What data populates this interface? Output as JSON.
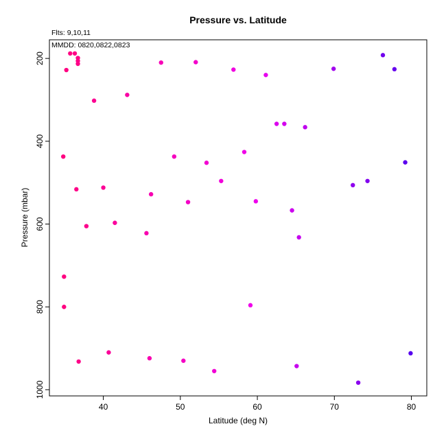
{
  "chart_data": {
    "type": "scatter",
    "title": "Pressure vs. Latitude",
    "xlabel": "Latitude (deg N)",
    "ylabel": "Pressure (mbar)",
    "xlim": [
      33,
      82
    ],
    "ylim": [
      1015,
      155
    ],
    "y_reversed": true,
    "grid": false,
    "legend": "none",
    "xticks": [
      40,
      50,
      60,
      70,
      80
    ],
    "yticks": [
      200,
      400,
      600,
      800,
      1000
    ],
    "annotations": [
      "Flts: 9,10,11",
      "MMDD: 0820,0822,0823"
    ],
    "color_scale": "latitude: deep pink (#ff0080) at 35 to magenta (#ee00ee) around 60 to blue-violet (#5500ee) at 80",
    "points": [
      {
        "x": 35.7,
        "y": 188
      },
      {
        "x": 36.3,
        "y": 188
      },
      {
        "x": 36.7,
        "y": 199
      },
      {
        "x": 36.7,
        "y": 206
      },
      {
        "x": 36.7,
        "y": 213
      },
      {
        "x": 35.2,
        "y": 228
      },
      {
        "x": 47.5,
        "y": 210
      },
      {
        "x": 52.0,
        "y": 209
      },
      {
        "x": 56.9,
        "y": 227
      },
      {
        "x": 61.1,
        "y": 240
      },
      {
        "x": 43.1,
        "y": 288
      },
      {
        "x": 38.8,
        "y": 302
      },
      {
        "x": 62.5,
        "y": 358
      },
      {
        "x": 63.5,
        "y": 358
      },
      {
        "x": 66.2,
        "y": 366
      },
      {
        "x": 69.9,
        "y": 225
      },
      {
        "x": 76.3,
        "y": 192
      },
      {
        "x": 77.8,
        "y": 226
      },
      {
        "x": 34.8,
        "y": 437
      },
      {
        "x": 49.2,
        "y": 437
      },
      {
        "x": 53.4,
        "y": 452
      },
      {
        "x": 58.3,
        "y": 426
      },
      {
        "x": 79.2,
        "y": 451
      },
      {
        "x": 55.3,
        "y": 496
      },
      {
        "x": 36.5,
        "y": 516
      },
      {
        "x": 40.0,
        "y": 512
      },
      {
        "x": 46.2,
        "y": 528
      },
      {
        "x": 51.0,
        "y": 547
      },
      {
        "x": 59.8,
        "y": 545
      },
      {
        "x": 64.5,
        "y": 567
      },
      {
        "x": 72.4,
        "y": 506
      },
      {
        "x": 74.3,
        "y": 496
      },
      {
        "x": 41.5,
        "y": 597
      },
      {
        "x": 37.8,
        "y": 605
      },
      {
        "x": 45.6,
        "y": 622
      },
      {
        "x": 65.4,
        "y": 632
      },
      {
        "x": 34.9,
        "y": 727
      },
      {
        "x": 34.9,
        "y": 800
      },
      {
        "x": 59.1,
        "y": 796
      },
      {
        "x": 40.7,
        "y": 910
      },
      {
        "x": 36.8,
        "y": 932
      },
      {
        "x": 46.0,
        "y": 924
      },
      {
        "x": 50.4,
        "y": 930
      },
      {
        "x": 54.4,
        "y": 955
      },
      {
        "x": 65.1,
        "y": 943
      },
      {
        "x": 73.1,
        "y": 983
      },
      {
        "x": 79.9,
        "y": 912
      }
    ]
  }
}
